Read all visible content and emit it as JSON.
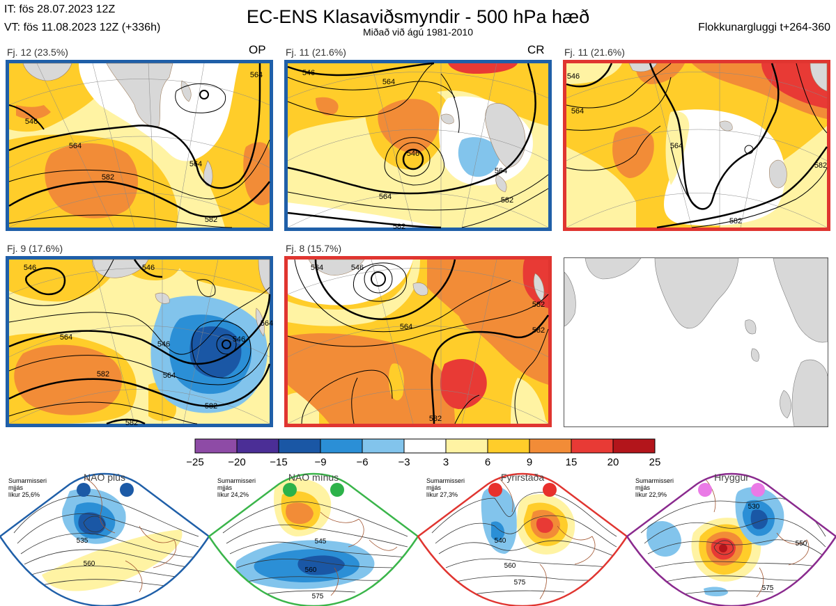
{
  "header": {
    "it_line": "IT: fös 28.07.2023 12Z",
    "vt_line": "VT: fös 11.08.2023 12Z  (+336h)",
    "title": "EC-ENS Klasaviðsmyndir - 500 hPa hæð",
    "subtitle": "Miðað við ágú 1981-2010",
    "window": "Flokkunargluggi t+264-360"
  },
  "panels": [
    {
      "label": "Fj. 12 (23.5%)",
      "tag": "OP",
      "border": "#1f5fa8",
      "contours": [
        "546",
        "564",
        "564",
        "582",
        "582",
        "564"
      ]
    },
    {
      "label": "Fj. 11 (21.6%)",
      "tag": "CR",
      "border": "#1f5fa8",
      "contours": [
        "546",
        "564",
        "546",
        "564",
        "582",
        "582",
        "564"
      ]
    },
    {
      "label": "Fj. 11 (21.6%)",
      "tag": "",
      "border": "#e03530",
      "contours": [
        "546",
        "564",
        "564",
        "582",
        "582"
      ]
    },
    {
      "label": "Fj. 9 (17.6%)",
      "tag": "",
      "border": "#1f5fa8",
      "contours": [
        "546",
        "546",
        "564",
        "546",
        "546",
        "564",
        "582",
        "582",
        "582",
        "564"
      ]
    },
    {
      "label": "Fj. 8 (15.7%)",
      "tag": "",
      "border": "#e03530",
      "contours": [
        "564",
        "546",
        "564",
        "582",
        "582",
        "582"
      ]
    }
  ],
  "colorbar": {
    "ticks": [
      "−25",
      "−20",
      "−15",
      "−9",
      "−6",
      "−3",
      "3",
      "6",
      "9",
      "15",
      "20",
      "25"
    ],
    "colors": [
      "#8e4ba6",
      "#4b2e96",
      "#1a57a5",
      "#2b8fd6",
      "#82c4ec",
      "#ffffff",
      "#fff3a3",
      "#ffcd2a",
      "#f28c37",
      "#e83a35",
      "#b3151b"
    ]
  },
  "regimes": [
    {
      "name": "NAO plús",
      "info": [
        "Sumarmisseri",
        "mjjás",
        "líkur 25,6%"
      ],
      "color": "#1f5fa8",
      "dot_color": "#1c5aa6",
      "contours": [
        "535",
        "560"
      ]
    },
    {
      "name": "NAO mínus",
      "info": [
        "Sumarmisseri",
        "mjjás",
        "líkur 24,2%"
      ],
      "color": "#3ab54a",
      "dot_color": "#2db24a",
      "contours": [
        "545",
        "560",
        "575"
      ]
    },
    {
      "name": "Fyrirstaða",
      "info": [
        "Sumarmisseri",
        "mjjás",
        "líkur 27,3%"
      ],
      "color": "#e03530",
      "dot_color": "#e8302c",
      "contours": [
        "540",
        "560",
        "575"
      ]
    },
    {
      "name": "Hryggur",
      "info": [
        "Sumarmisseri",
        "mjjás",
        "líkur 22,9%"
      ],
      "color": "#8a2a8e",
      "dot_color": "#ea7ae6",
      "contours": [
        "530",
        "550",
        "575"
      ]
    }
  ]
}
